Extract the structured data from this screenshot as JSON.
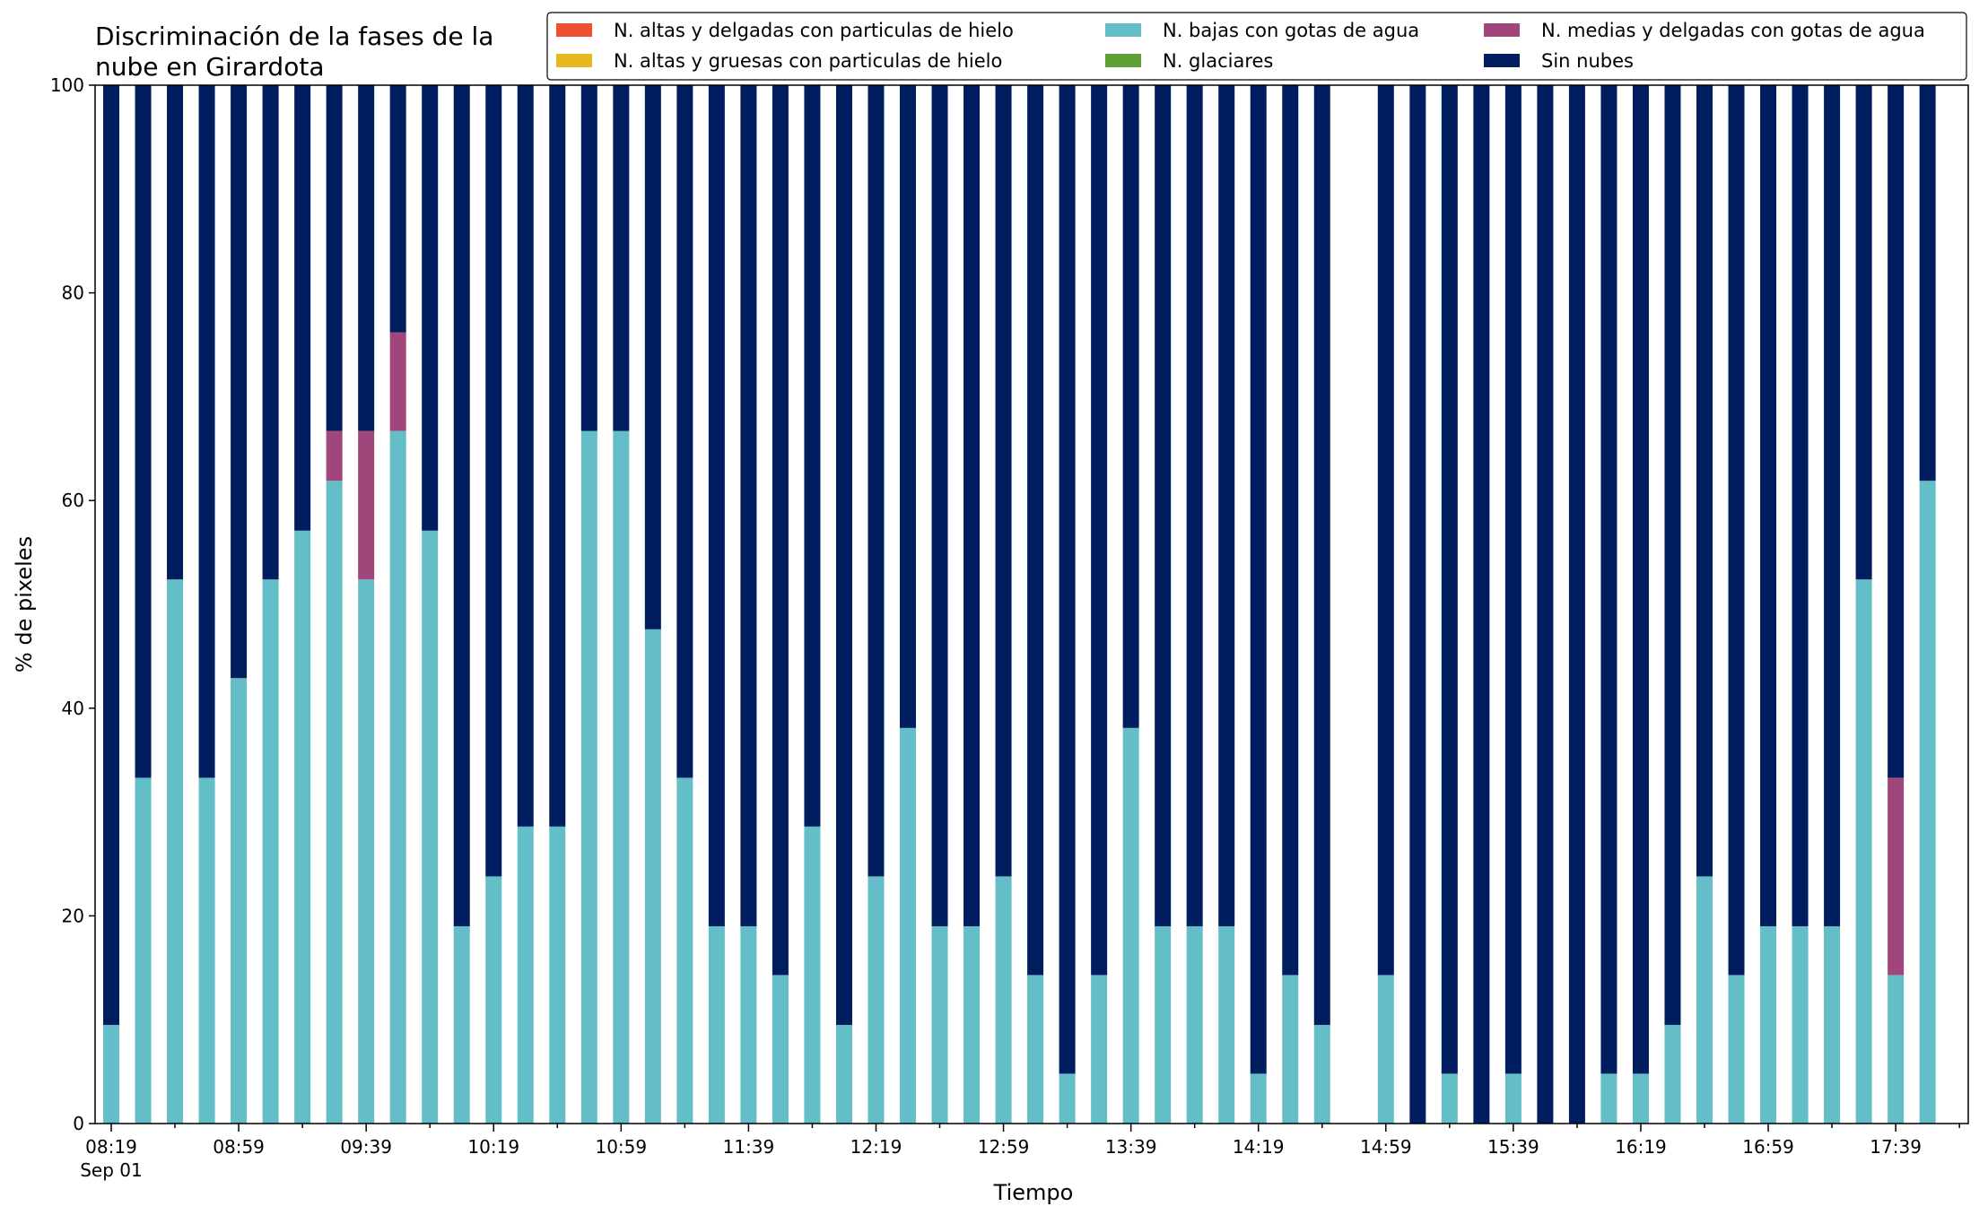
{
  "chart_data": {
    "type": "bar",
    "stacked": true,
    "title": "Discriminación de la fases de la nube en Girardota",
    "title_lines": [
      "Discriminación de la fases de la",
      "nube en Girardota"
    ],
    "xlabel": "Tiempo",
    "ylabel": "% de pixeles",
    "ylim": [
      0,
      100
    ],
    "yticks": [
      0,
      20,
      40,
      60,
      80,
      100
    ],
    "grid": false,
    "legend_position": "top-right",
    "x_start": "08:19",
    "x_step_minutes": 10,
    "x_date_label": "Sep 01",
    "xtick_labels": [
      "08:19",
      "08:59",
      "09:39",
      "10:19",
      "10:59",
      "11:39",
      "12:19",
      "12:59",
      "13:39",
      "14:19",
      "14:59",
      "15:39",
      "16:19",
      "16:59",
      "17:39"
    ],
    "categories": [
      "08:19",
      "08:29",
      "08:39",
      "08:49",
      "08:59",
      "09:09",
      "09:19",
      "09:29",
      "09:39",
      "09:49",
      "09:59",
      "10:09",
      "10:19",
      "10:29",
      "10:39",
      "10:49",
      "10:59",
      "11:09",
      "11:19",
      "11:29",
      "11:39",
      "11:49",
      "11:59",
      "12:09",
      "12:19",
      "12:29",
      "12:39",
      "12:49",
      "12:59",
      "13:09",
      "13:19",
      "13:29",
      "13:39",
      "13:49",
      "13:59",
      "14:09",
      "14:19",
      "14:29",
      "14:39",
      "14:49",
      "14:59",
      "15:09",
      "15:19",
      "15:29",
      "15:39",
      "15:49",
      "15:59",
      "16:09",
      "16:19",
      "16:29",
      "16:39",
      "16:49",
      "16:59",
      "17:09",
      "17:19",
      "17:29",
      "17:39",
      "17:49"
    ],
    "series": [
      {
        "name": "N. altas y delgadas con particulas de hielo",
        "color": "#f05032",
        "values": [
          0,
          0,
          0,
          0,
          0,
          0,
          0,
          0,
          0,
          0,
          0,
          0,
          0,
          0,
          0,
          0,
          0,
          0,
          0,
          0,
          0,
          0,
          0,
          0,
          0,
          0,
          0,
          0,
          0,
          0,
          0,
          0,
          0,
          0,
          0,
          0,
          0,
          0,
          0,
          null,
          0,
          0,
          0,
          0,
          0,
          0,
          0,
          0,
          0,
          0,
          0,
          0,
          0,
          0,
          0,
          0,
          0,
          0
        ]
      },
      {
        "name": "N. altas y gruesas con particulas de hielo",
        "color": "#e6b81e",
        "values": [
          0,
          0,
          0,
          0,
          0,
          0,
          0,
          0,
          0,
          0,
          0,
          0,
          0,
          0,
          0,
          0,
          0,
          0,
          0,
          0,
          0,
          0,
          0,
          0,
          0,
          0,
          0,
          0,
          0,
          0,
          0,
          0,
          0,
          0,
          0,
          0,
          0,
          0,
          0,
          null,
          0,
          0,
          0,
          0,
          0,
          0,
          0,
          0,
          0,
          0,
          0,
          0,
          0,
          0,
          0,
          0,
          0,
          0
        ]
      },
      {
        "name": "N. bajas con gotas de agua",
        "color": "#64bec8",
        "values": [
          9.5,
          33.3,
          52.4,
          33.3,
          42.9,
          52.4,
          57.1,
          61.9,
          52.4,
          66.7,
          57.1,
          19.0,
          23.8,
          28.6,
          28.6,
          66.7,
          66.7,
          47.6,
          33.3,
          19.0,
          19.0,
          14.3,
          28.6,
          9.5,
          23.8,
          38.1,
          19.0,
          19.0,
          23.8,
          14.3,
          4.8,
          14.3,
          38.1,
          19.0,
          19.0,
          19.0,
          4.8,
          14.3,
          9.5,
          null,
          14.3,
          0,
          4.8,
          0,
          4.8,
          0,
          0,
          4.8,
          4.8,
          9.5,
          23.8,
          14.3,
          19.0,
          19.0,
          19.0,
          52.4,
          14.3,
          61.9
        ]
      },
      {
        "name": "N. glaciares",
        "color": "#5fa032",
        "values": [
          0,
          0,
          0,
          0,
          0,
          0,
          0,
          0,
          0,
          0,
          0,
          0,
          0,
          0,
          0,
          0,
          0,
          0,
          0,
          0,
          0,
          0,
          0,
          0,
          0,
          0,
          0,
          0,
          0,
          0,
          0,
          0,
          0,
          0,
          0,
          0,
          0,
          0,
          0,
          null,
          0,
          0,
          0,
          0,
          0,
          0,
          0,
          0,
          0,
          0,
          0,
          0,
          0,
          0,
          0,
          0,
          0,
          0
        ]
      },
      {
        "name": "N. medias y delgadas con gotas de agua",
        "color": "#a0467a",
        "values": [
          0,
          0,
          0,
          0,
          0,
          0,
          0,
          4.8,
          14.3,
          9.5,
          0,
          0,
          0,
          0,
          0,
          0,
          0,
          0,
          0,
          0,
          0,
          0,
          0,
          0,
          0,
          0,
          0,
          0,
          0,
          0,
          0,
          0,
          0,
          0,
          0,
          0,
          0,
          0,
          0,
          null,
          0,
          0,
          0,
          0,
          0,
          0,
          0,
          0,
          0,
          0,
          0,
          0,
          0,
          0,
          0,
          0,
          19.0,
          0
        ]
      },
      {
        "name": "Sin nubes",
        "color": "#001e5f",
        "values": [
          90.5,
          66.7,
          47.6,
          66.7,
          57.1,
          47.6,
          42.9,
          33.3,
          33.3,
          23.8,
          42.9,
          81.0,
          76.2,
          71.4,
          71.4,
          33.3,
          33.3,
          52.4,
          66.7,
          81.0,
          81.0,
          85.7,
          71.4,
          90.5,
          76.2,
          61.9,
          81.0,
          81.0,
          76.2,
          85.7,
          95.2,
          85.7,
          61.9,
          81.0,
          81.0,
          81.0,
          95.2,
          85.7,
          90.5,
          null,
          85.7,
          100,
          95.2,
          100,
          95.2,
          100,
          100,
          95.2,
          95.2,
          90.5,
          76.2,
          85.7,
          81.0,
          81.0,
          81.0,
          47.6,
          66.7,
          38.1
        ]
      }
    ]
  }
}
